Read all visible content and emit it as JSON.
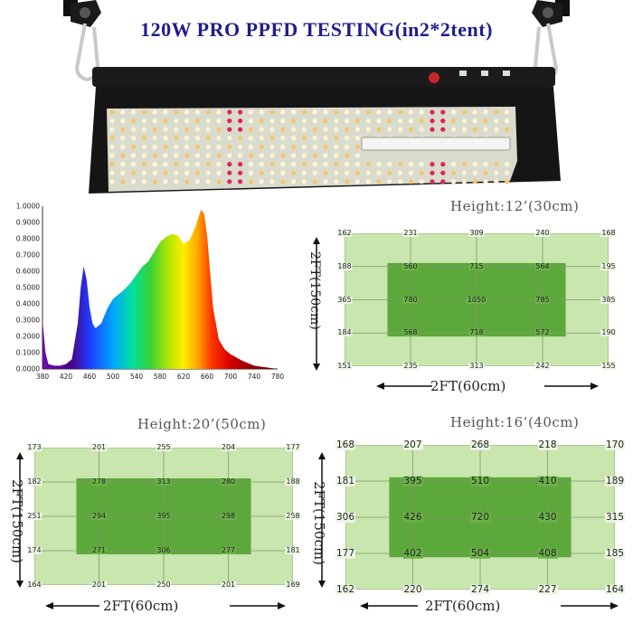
{
  "title": "120W   PRO PPFD TESTING(in2*2tent)",
  "colors": {
    "title": "#1e1e8c",
    "panel_frame": "#151515",
    "board": "#d9dccd",
    "grid_light": "#c8e6ad",
    "grid_core": "#5da83b"
  },
  "fixture": {
    "strap_icon": "ratchet-hanger-icon"
  },
  "chart_data": [
    {
      "type": "area",
      "title": "",
      "xlabel": "",
      "ylabel": "",
      "xlim": [
        380,
        780
      ],
      "ylim": [
        0,
        1
      ],
      "x_ticks": [
        380,
        420,
        460,
        500,
        540,
        580,
        620,
        660,
        700,
        740,
        780
      ],
      "y_ticks": [
        "0.0000",
        "0.1000",
        "0.2000",
        "0.3000",
        "0.4000",
        "0.5000",
        "0.6000",
        "0.7000",
        "0.8000",
        "0.9000",
        "1.0000"
      ],
      "grid": false,
      "x": [
        380,
        385,
        390,
        400,
        410,
        420,
        430,
        440,
        445,
        450,
        455,
        460,
        465,
        470,
        480,
        490,
        500,
        510,
        520,
        530,
        540,
        550,
        560,
        570,
        580,
        590,
        600,
        610,
        620,
        630,
        640,
        645,
        650,
        655,
        660,
        665,
        670,
        680,
        690,
        700,
        720,
        740,
        760,
        780
      ],
      "y": [
        0.3,
        0.1,
        0.03,
        0.02,
        0.02,
        0.03,
        0.06,
        0.28,
        0.5,
        0.63,
        0.55,
        0.38,
        0.28,
        0.25,
        0.28,
        0.37,
        0.43,
        0.46,
        0.49,
        0.53,
        0.58,
        0.63,
        0.66,
        0.72,
        0.78,
        0.81,
        0.83,
        0.82,
        0.77,
        0.79,
        0.87,
        0.93,
        0.98,
        0.95,
        0.82,
        0.6,
        0.38,
        0.18,
        0.12,
        0.09,
        0.05,
        0.02,
        0.01,
        0.0
      ]
    },
    {
      "type": "heatmap",
      "name": "12",
      "header": "Height:12’(30cm)",
      "width_label": "2FT(60cm)",
      "side_label": "2FT(150cm)",
      "core_rows": [
        1,
        3
      ],
      "core_cols": [
        1,
        3
      ],
      "values": [
        [
          162,
          231,
          309,
          240,
          168
        ],
        [
          188,
          560,
          715,
          564,
          195
        ],
        [
          365,
          780,
          1050,
          785,
          385
        ],
        [
          184,
          568,
          718,
          572,
          190
        ],
        [
          151,
          235,
          313,
          242,
          155
        ]
      ]
    },
    {
      "type": "heatmap",
      "name": "20",
      "header": "Height:20’(50cm)",
      "width_label": "2FT(60cm)",
      "side_label": "2FT(150cm)",
      "core_rows": [
        1,
        3
      ],
      "core_cols": [
        1,
        3
      ],
      "values": [
        [
          173,
          201,
          255,
          204,
          177
        ],
        [
          182,
          278,
          313,
          280,
          188
        ],
        [
          251,
          294,
          395,
          298,
          258
        ],
        [
          174,
          271,
          306,
          277,
          181
        ],
        [
          164,
          201,
          250,
          201,
          169
        ]
      ]
    },
    {
      "type": "heatmap",
      "name": "16",
      "header": "Height:16’(40cm)",
      "width_label": "2FT(60cm)",
      "side_label": "2FT(150cm)",
      "core_rows": [
        1,
        3
      ],
      "core_cols": [
        1,
        3
      ],
      "values": [
        [
          168,
          207,
          268,
          218,
          170
        ],
        [
          181,
          395,
          510,
          410,
          189
        ],
        [
          306,
          426,
          720,
          430,
          315
        ],
        [
          177,
          402,
          504,
          408,
          185
        ],
        [
          162,
          220,
          274,
          227,
          164
        ]
      ]
    }
  ]
}
